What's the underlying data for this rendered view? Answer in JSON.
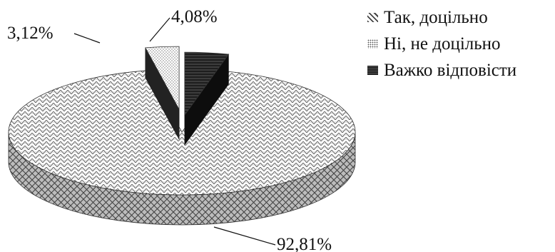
{
  "chart_data": {
    "type": "pie",
    "series": [
      {
        "values": [
          92.81,
          3.12,
          4.08
        ],
        "labels": [
          "92,81%",
          "3,12%",
          "4,08%"
        ]
      }
    ],
    "categories": [
      "Так, доцільно",
      "Ні, не доцільно",
      "Важко відповісти"
    ],
    "legend": {
      "placement": "top-right",
      "entries": [
        "Так, доцільно",
        "Ні, не доцільно",
        "Важко відповісти"
      ]
    },
    "colors": [
      "#ffffff",
      "#f2f2f2",
      "#1a1a1a"
    ],
    "exploded": [
      false,
      true,
      true
    ],
    "style": "3d"
  }
}
